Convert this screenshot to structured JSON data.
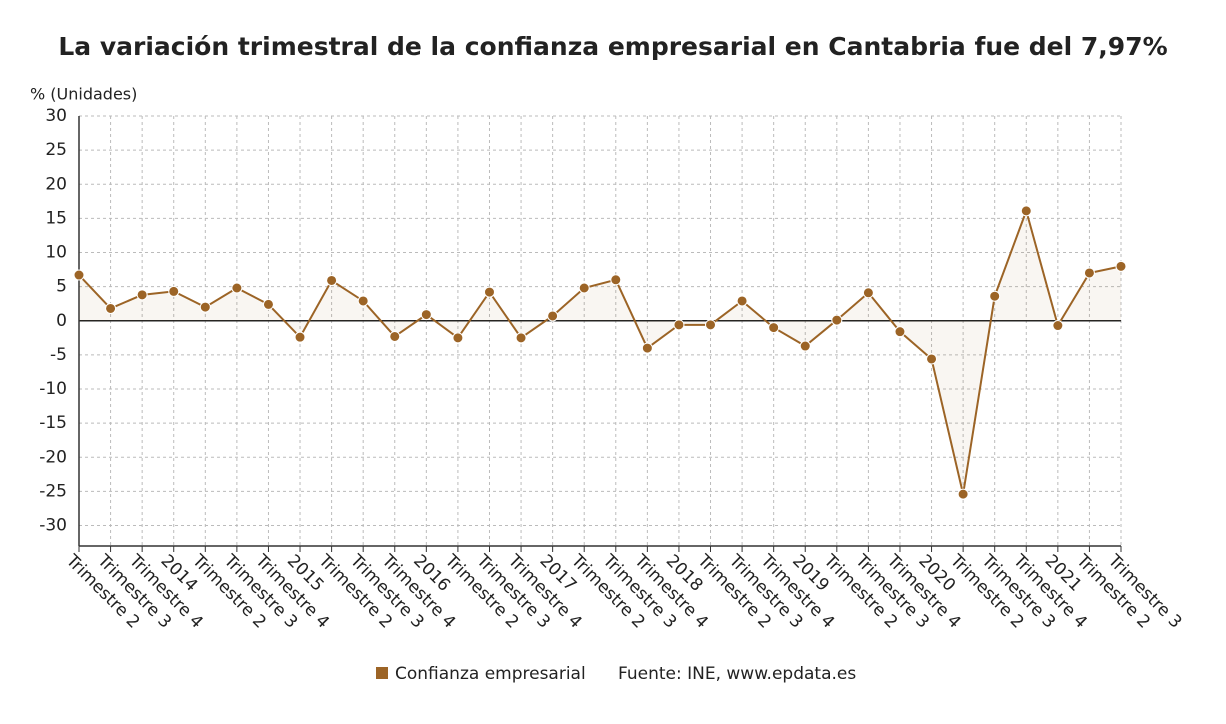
{
  "chart_data": {
    "type": "line",
    "title": "La variación trimestral de la confianza empresarial en Cantabria fue del 7,97%",
    "y_label": "% (Unidades)",
    "source": "Fuente: INE, www.epdata.es",
    "categories": [
      "Trimestre 2",
      "Trimestre 3",
      "Trimestre 4",
      "2014",
      "Trimestre 2",
      "Trimestre 3",
      "Trimestre 4",
      "2015",
      "Trimestre 2",
      "Trimestre 3",
      "Trimestre 4",
      "2016",
      "Trimestre 2",
      "Trimestre 3",
      "Trimestre 4",
      "2017",
      "Trimestre 2",
      "Trimestre 3",
      "Trimestre 4",
      "2018",
      "Trimestre 2",
      "Trimestre 3",
      "Trimestre 4",
      "2019",
      "Trimestre 2",
      "Trimestre 3",
      "Trimestre 4",
      "2020",
      "Trimestre 2",
      "Trimestre 3",
      "Trimestre 4",
      "2021",
      "Trimestre 2",
      "Trimestre 3"
    ],
    "series": [
      {
        "name": "Confianza empresarial",
        "color": "#9c6426",
        "values": [
          6.7,
          1.8,
          3.8,
          4.3,
          2.0,
          4.8,
          2.4,
          -2.4,
          5.9,
          2.9,
          -2.3,
          0.9,
          -2.5,
          4.2,
          -2.5,
          0.7,
          4.8,
          6.0,
          -4.0,
          -0.6,
          -0.6,
          2.9,
          -1.0,
          -3.7,
          0.1,
          4.1,
          -1.6,
          -5.6,
          -25.4,
          3.6,
          16.1,
          -0.7,
          7.0,
          7.97
        ]
      }
    ],
    "ylim": [
      -33,
      30
    ],
    "yticks": [
      -30,
      -25,
      -20,
      -15,
      -10,
      -5,
      0,
      5,
      10,
      15,
      20,
      25,
      30
    ],
    "grid": true
  }
}
